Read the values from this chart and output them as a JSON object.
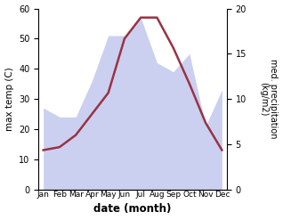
{
  "months": [
    "Jan",
    "Feb",
    "Mar",
    "Apr",
    "May",
    "Jun",
    "Jul",
    "Aug",
    "Sep",
    "Oct",
    "Nov",
    "Dec"
  ],
  "temperature": [
    13,
    14,
    18,
    25,
    32,
    50,
    57,
    57,
    47,
    35,
    22,
    13
  ],
  "precipitation": [
    9,
    8,
    8,
    12,
    17,
    17,
    19,
    14,
    13,
    15,
    7,
    11
  ],
  "temp_ylim": [
    0,
    60
  ],
  "precip_ylim": [
    0,
    20
  ],
  "temp_color": "#993344",
  "fill_color": "#b0b8e8",
  "fill_alpha": 0.65,
  "xlabel": "date (month)",
  "ylabel_left": "max temp (C)",
  "ylabel_right": "med. precipitation\n(kg/m2)",
  "bg_color": "#ffffff"
}
